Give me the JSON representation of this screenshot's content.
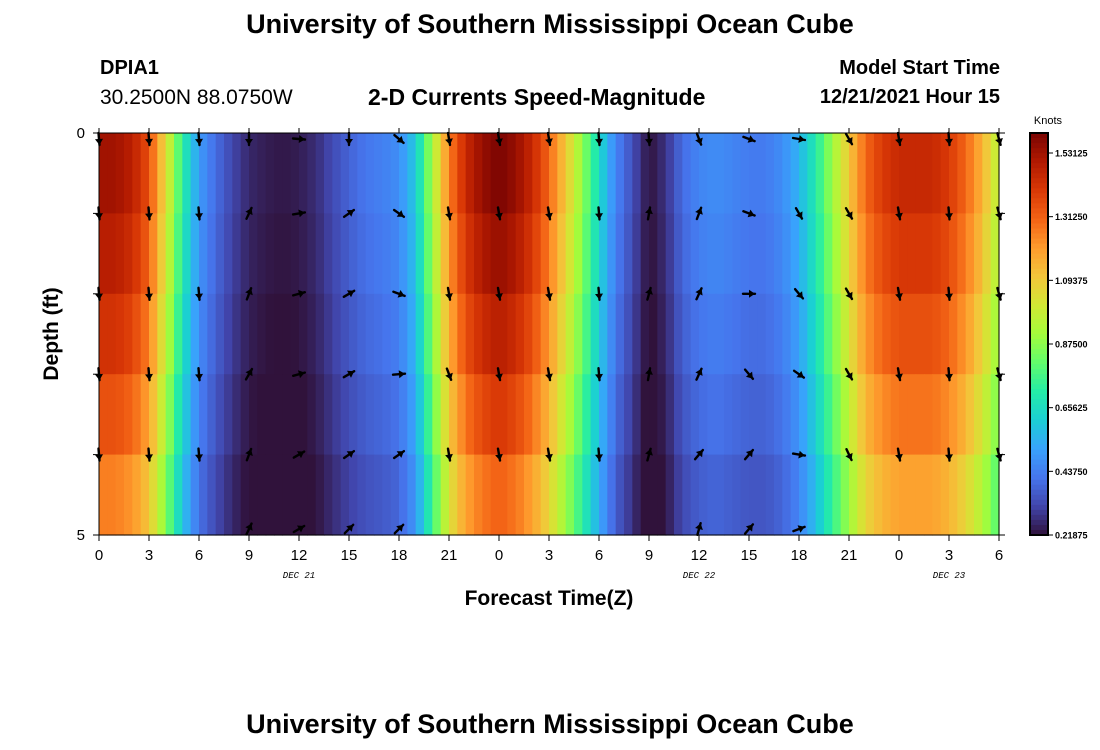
{
  "header": {
    "title": "University of Southern Mississippi Ocean Cube",
    "station": "DPIA1",
    "coords": "30.2500N  88.0750W",
    "subtitle": "2-D Currents Speed-Magnitude",
    "start_label": "Model Start Time",
    "start_value": "12/21/2021 Hour 15"
  },
  "footer": {
    "title": "University of Southern Mississippi Ocean Cube"
  },
  "chart_data": {
    "type": "heatmap",
    "title": "2-D Currents Speed-Magnitude",
    "xlabel": "Forecast Time(Z)",
    "ylabel": "Depth (ft)",
    "ylim": [
      0,
      5
    ],
    "y_ticks": [
      "0",
      "5"
    ],
    "x_ticks": [
      "0",
      "3",
      "6",
      "9",
      "12",
      "15",
      "18",
      "21",
      "0",
      "3",
      "6",
      "9",
      "12",
      "15",
      "18",
      "21",
      "0",
      "3",
      "6"
    ],
    "x_ticks_hours": [
      0,
      3,
      6,
      9,
      12,
      15,
      18,
      21,
      24,
      27,
      30,
      33,
      36,
      39,
      42,
      45,
      48,
      51,
      54
    ],
    "xlim_hours": [
      0,
      54
    ],
    "day_labels": [
      {
        "label": "DEC 21",
        "hour": 12
      },
      {
        "label": "DEC 22",
        "hour": 36
      },
      {
        "label": "DEC 23",
        "hour": 51
      }
    ],
    "colorbar": {
      "units": "Knots",
      "vmin": 0.21875,
      "vmax": 1.6,
      "tick_values": [
        1.53125,
        1.3125,
        1.09375,
        0.875,
        0.65625,
        0.4375,
        0.21875
      ],
      "tick_labels": [
        "1.53125",
        "1.31250",
        "1.09375",
        "0.87500",
        "0.65625",
        "0.43750",
        "0.21875"
      ],
      "colors": [
        "#30123b",
        "#4145ab",
        "#4675ed",
        "#39a2fc",
        "#1bcfd4",
        "#24eca6",
        "#61fc6c",
        "#a4fc3b",
        "#d1e834",
        "#f3c63a",
        "#fe9b2d",
        "#f36315",
        "#d93806",
        "#b11901",
        "#7a0402"
      ]
    },
    "speed_profile": {
      "hours": [
        0,
        1,
        2,
        3,
        4,
        5,
        6,
        7,
        8,
        9,
        10,
        11,
        12,
        13,
        14,
        15,
        16,
        17,
        18,
        19,
        20,
        21,
        22,
        23,
        24,
        25,
        26,
        27,
        28,
        29,
        30,
        31,
        32,
        33,
        34,
        35,
        36,
        37,
        38,
        39,
        40,
        41,
        42,
        43,
        44,
        45,
        46,
        47,
        48,
        49,
        50,
        51,
        52,
        53,
        54
      ],
      "surface_knots": [
        1.53,
        1.53,
        1.48,
        1.35,
        1.05,
        0.72,
        0.5,
        0.4,
        0.32,
        0.26,
        0.24,
        0.23,
        0.24,
        0.27,
        0.33,
        0.38,
        0.42,
        0.44,
        0.47,
        0.6,
        0.92,
        1.25,
        1.45,
        1.55,
        1.6,
        1.55,
        1.45,
        1.3,
        1.1,
        0.88,
        0.65,
        0.45,
        0.34,
        0.22,
        0.28,
        0.4,
        0.45,
        0.47,
        0.45,
        0.43,
        0.43,
        0.47,
        0.55,
        0.7,
        0.9,
        1.1,
        1.3,
        1.4,
        1.45,
        1.45,
        1.45,
        1.4,
        1.3,
        1.15,
        0.95
      ]
    },
    "depth_levels_ft": [
      0.5,
      1.5,
      2.5,
      3.5,
      4.5
    ],
    "depth_factors": [
      1.0,
      0.97,
      0.93,
      0.88,
      0.82
    ],
    "vectors": {
      "hours": [
        0,
        3,
        6,
        9,
        12,
        15,
        18,
        21,
        24,
        27,
        30,
        33,
        36,
        39,
        42,
        45,
        48,
        51,
        54
      ],
      "rows": [
        {
          "depth_ft": 0,
          "direction_deg": [
            175,
            175,
            175,
            180,
            95,
            180,
            130,
            170,
            170,
            170,
            175,
            175,
            160,
            110,
            100,
            150,
            170,
            175,
            165
          ]
        },
        {
          "depth_ft": 1,
          "direction_deg": [
            175,
            175,
            175,
            25,
            80,
            55,
            125,
            170,
            170,
            170,
            175,
            10,
            20,
            110,
            150,
            150,
            170,
            175,
            165
          ]
        },
        {
          "depth_ft": 2,
          "direction_deg": [
            175,
            175,
            175,
            20,
            75,
            60,
            110,
            170,
            170,
            170,
            175,
            15,
            25,
            90,
            140,
            150,
            170,
            175,
            165
          ]
        },
        {
          "depth_ft": 3,
          "direction_deg": [
            175,
            175,
            175,
            30,
            75,
            60,
            85,
            160,
            170,
            170,
            175,
            10,
            25,
            140,
            125,
            150,
            170,
            175,
            165
          ]
        },
        {
          "depth_ft": 4,
          "direction_deg": [
            175,
            175,
            175,
            20,
            60,
            55,
            55,
            170,
            170,
            170,
            175,
            15,
            40,
            40,
            100,
            155,
            170,
            175,
            165
          ]
        },
        {
          "depth_ft": 5,
          "direction_deg": [
            null,
            null,
            null,
            25,
            60,
            45,
            45,
            null,
            null,
            null,
            null,
            null,
            15,
            40,
            70,
            null,
            null,
            null,
            null
          ]
        }
      ]
    }
  }
}
